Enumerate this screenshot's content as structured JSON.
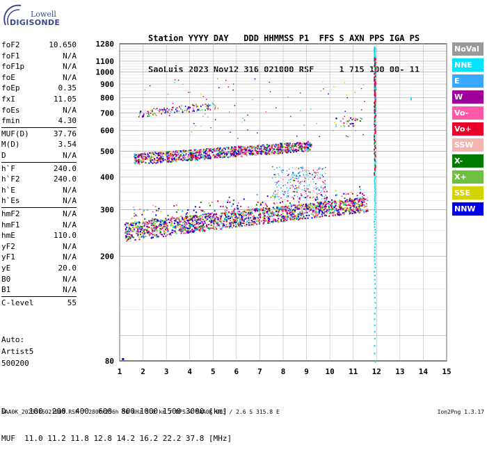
{
  "logo": {
    "line1": "Lowell",
    "line2": "DIGISONDE"
  },
  "header": {
    "labels": "Station YYYY DAY   DDD HHMMSS P1  FFS S AXN PPS IGA PS",
    "values": "SaoLuis 2023 Nov12 316 021000 RSF     1 715 100 00- 11"
  },
  "params": {
    "group1": [
      {
        "name": "foF2",
        "value": "10.650"
      },
      {
        "name": "foF1",
        "value": "N/A"
      },
      {
        "name": "foF1p",
        "value": "N/A"
      },
      {
        "name": "foE",
        "value": "N/A"
      },
      {
        "name": "foEp",
        "value": "0.35"
      },
      {
        "name": "fxI",
        "value": "11.05"
      },
      {
        "name": "foEs",
        "value": "N/A"
      },
      {
        "name": "fmin",
        "value": "4.30"
      }
    ],
    "group2": [
      {
        "name": "MUF(D)",
        "value": "37.76"
      },
      {
        "name": "M(D)",
        "value": "3.54"
      },
      {
        "name": "D",
        "value": "N/A"
      }
    ],
    "group3": [
      {
        "name": "h`F",
        "value": "240.0"
      },
      {
        "name": "h`F2",
        "value": "240.0"
      },
      {
        "name": "h`E",
        "value": "N/A"
      },
      {
        "name": "h`Es",
        "value": "N/A"
      }
    ],
    "group4": [
      {
        "name": "hmF2",
        "value": "N/A"
      },
      {
        "name": "hmF1",
        "value": "N/A"
      },
      {
        "name": "hmE",
        "value": "110.0"
      },
      {
        "name": "yF2",
        "value": "N/A"
      },
      {
        "name": "yF1",
        "value": "N/A"
      },
      {
        "name": "yE",
        "value": "20.0"
      },
      {
        "name": "B0",
        "value": "N/A"
      },
      {
        "name": "B1",
        "value": "N/A"
      }
    ],
    "group5": [
      {
        "name": "C-level",
        "value": "55"
      }
    ]
  },
  "auto": {
    "line1": "Auto:",
    "line2": "Artist5",
    "line3": "500200"
  },
  "bottom": {
    "d_row": "D     100  200  400  600  800 1000 1500 3000 [km]",
    "muf_row": "MUF  11.0 11.2 11.8 12.8 14.2 16.2 22.2 37.8 [MHz]"
  },
  "footer": {
    "left": "SAA0K_2023316021000.RSF / 280fx256h 50 kHz 5.0 km / DPS-4 SAA0K 903 / 2.6 S 315.8 E",
    "right": "Ion2Png 1.3.17"
  },
  "legend": [
    {
      "label": "NoVal",
      "color": "#999999"
    },
    {
      "label": "NNE",
      "color": "#00e5ff"
    },
    {
      "label": "E",
      "color": "#3aa8ff"
    },
    {
      "label": "W",
      "color": "#a0009a"
    },
    {
      "label": "Vo-",
      "color": "#ff58a8"
    },
    {
      "label": "Vo+",
      "color": "#e8002a"
    },
    {
      "label": "SSW",
      "color": "#f4b4b0"
    },
    {
      "label": "X-",
      "color": "#007a00"
    },
    {
      "label": "X+",
      "color": "#6ec040"
    },
    {
      "label": "SSE",
      "color": "#d4d400"
    },
    {
      "label": "NNW",
      "color": "#0000e8"
    }
  ],
  "chart_data": {
    "type": "scatter",
    "title": "",
    "xlabel": "",
    "ylabel": "",
    "xlim": [
      1,
      15
    ],
    "ylim": [
      80,
      1280
    ],
    "y_scale": "log",
    "x_ticks": [
      "1",
      "2",
      "3",
      "4",
      "5",
      "6",
      "7",
      "8",
      "9",
      "10",
      "11",
      "12",
      "13",
      "14",
      "15"
    ],
    "y_ticks": [
      "80",
      "200",
      "300",
      "400",
      "500",
      "600",
      "700",
      "800",
      "900",
      "1000",
      "1100",
      "1280"
    ],
    "grid": true,
    "legend_position": "right",
    "traces": [
      {
        "name": "F lower trace (~250-300 km)",
        "x_from": 1.2,
        "x_to": 11.5,
        "y_from": 235,
        "y_to": 315
      },
      {
        "name": "F second hop (~460-560 km)",
        "x_from": 1.6,
        "x_to": 9.0,
        "y_from": 460,
        "y_to": 520
      },
      {
        "name": "third hop (~700 km)",
        "x_from": 1.8,
        "x_to": 5.0,
        "y_from": 690,
        "y_to": 760
      },
      {
        "name": "oblique cloud near 8 MHz",
        "x_from": 7.5,
        "x_to": 9.8,
        "y_from": 330,
        "y_to": 440
      }
    ],
    "vertical_line": {
      "x": 11.9,
      "y_from": 80,
      "y_to": 1250
    }
  }
}
